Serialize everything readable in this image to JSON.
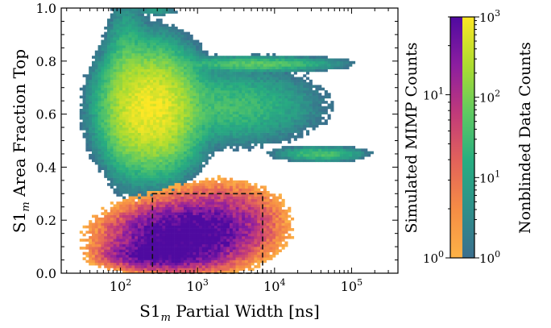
{
  "chart_data": [
    {
      "type": "heatmap",
      "xlabel": "S1",
      "xlabel_sub": "m",
      "xlabel_rest": " Partial Width [ns]",
      "ylabel": "S1",
      "ylabel_sub": "m",
      "ylabel_rest": " Area Fraction Top",
      "x_scale": "log",
      "xlim": [
        17,
        400000
      ],
      "ylim": [
        0.0,
        1.0
      ],
      "x_ticks": [
        {
          "value": 100,
          "base": "10",
          "exp": "2"
        },
        {
          "value": 1000,
          "base": "10",
          "exp": "3"
        },
        {
          "value": 10000,
          "base": "10",
          "exp": "4"
        },
        {
          "value": 100000,
          "base": "10",
          "exp": "5"
        }
      ],
      "y_ticks": [
        {
          "value": 0.0,
          "label": "0.0"
        },
        {
          "value": 0.2,
          "label": "0.2"
        },
        {
          "value": 0.4,
          "label": "0.4"
        },
        {
          "value": 0.6,
          "label": "0.6"
        },
        {
          "value": 0.8,
          "label": "0.8"
        },
        {
          "value": 1.0,
          "label": "1.0"
        }
      ],
      "grid": false,
      "series": [
        {
          "name": "Nonblinded Data Counts",
          "colormap": "viridis",
          "clusters": [
            {
              "x": 250,
              "y": 0.62,
              "sx": 0.25,
              "sy": 0.09,
              "peak": 900
            },
            {
              "x": 120,
              "y": 0.68,
              "sx": 0.12,
              "sy": 0.13,
              "peak": 70
            },
            {
              "x": 2500,
              "y": 0.63,
              "sx": 0.5,
              "sy": 0.06,
              "peak": 35
            },
            {
              "x": 6000,
              "y": 0.79,
              "sx": 0.45,
              "sy": 0.012,
              "peak": 60
            },
            {
              "x": 40000,
              "y": 0.45,
              "sx": 0.25,
              "sy": 0.012,
              "peak": 40
            },
            {
              "x": 300,
              "y": 0.99,
              "sx": 0.12,
              "sy": 0.008,
              "peak": 8
            }
          ]
        },
        {
          "name": "Simulated MIMP Counts",
          "colormap": "plasma_r",
          "clusters": [
            {
              "x": 600,
              "y": 0.14,
              "sx": 0.45,
              "sy": 0.06,
              "peak": 45
            },
            {
              "x": 300,
              "y": 0.07,
              "sx": 0.35,
              "sy": 0.025,
              "peak": 30
            },
            {
              "x": 2000,
              "y": 0.2,
              "sx": 0.4,
              "sy": 0.07,
              "peak": 12
            }
          ]
        }
      ],
      "region_box": {
        "x": [
          260,
          7000
        ],
        "y": [
          0.0,
          0.3
        ],
        "style": "dashed"
      },
      "colorbars": [
        {
          "label": "Simulated MIMP Counts",
          "colormap": "plasma_r",
          "range": [
            1,
            30
          ],
          "scale": "log",
          "ticks": [
            {
              "value": 1,
              "base": "10",
              "exp": "0"
            },
            {
              "value": 10,
              "base": "10",
              "exp": "1"
            }
          ]
        },
        {
          "label": "Nonblinded Data Counts",
          "colormap": "viridis",
          "range": [
            1,
            1000
          ],
          "scale": "log",
          "ticks": [
            {
              "value": 1,
              "base": "10",
              "exp": "0"
            },
            {
              "value": 10,
              "base": "10",
              "exp": "1"
            },
            {
              "value": 100,
              "base": "10",
              "exp": "2"
            },
            {
              "value": 1000,
              "base": "10",
              "exp": "3"
            }
          ]
        }
      ]
    }
  ]
}
